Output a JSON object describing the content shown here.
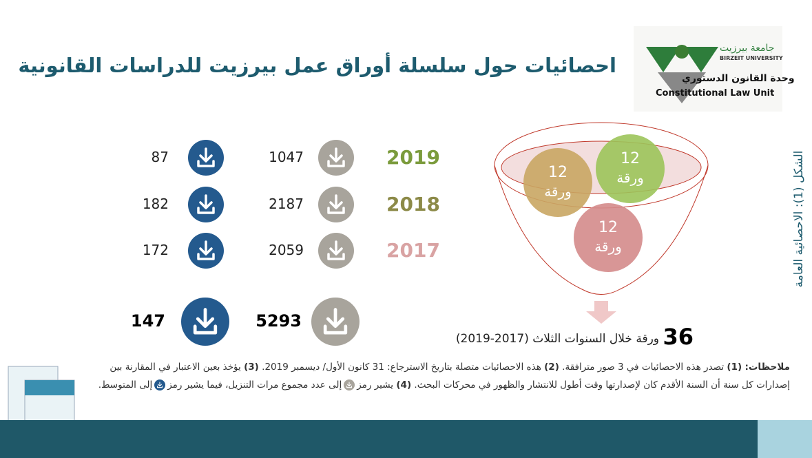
{
  "title": "احصائيات حول سلسلة أوراق عمل بيرزيت للدراسات القانونية",
  "logo": {
    "university_ar": "جامعة بيرزيت",
    "university_en": "BIRZEIT UNIVERSITY",
    "unit_ar": "وحدة القانون الدستوري",
    "unit_en": "Constitutional Law Unit"
  },
  "figure_label": "الشكل (1): الاحصائية العامة",
  "rows": [
    {
      "year": "2019",
      "color": "#7b9b3c",
      "total": 1047,
      "average": 87
    },
    {
      "year": "2018",
      "color": "#8c8a48",
      "total": 2187,
      "average": 182
    },
    {
      "year": "2017",
      "color": "#d9a3a3",
      "total": 2059,
      "average": 172
    }
  ],
  "totals": {
    "total": 5293,
    "average": 147
  },
  "funnel": {
    "circles": [
      {
        "number": 12,
        "unit": "ورقة",
        "color": "#9cc45a"
      },
      {
        "number": 12,
        "unit": "ورقة",
        "color": "#c9a663"
      },
      {
        "number": 12,
        "unit": "ورقة",
        "color": "#d48b8b"
      }
    ],
    "count": 36,
    "caption": "ورقة خلال السنوات الثلاث (2017-2019)"
  },
  "notes": {
    "heading": "ملاحظات:",
    "items": [
      {
        "num": "(1)",
        "text": "تصدر هذه الاحصائيات في 3 صور مترافقة."
      },
      {
        "num": "(2)",
        "text": "هذه الاحصائيات متصلة بتاريخ الاسترجاع: 31 كانون الأول/ ديسمبر 2019."
      },
      {
        "num": "(3)",
        "text": "يؤخذ بعين الاعتبار في المقارنة بين إصدارات كل سنة أن السنة الأقدم كان لإصدارتها وقت أطول للانتشار والظهور في محركات البحث."
      },
      {
        "num": "(4)",
        "parts": [
          "يشير رمز",
          "إلى عدد مجموع مرات التنزيل، فيما يشير رمز",
          "إلى المتوسط."
        ]
      }
    ]
  }
}
